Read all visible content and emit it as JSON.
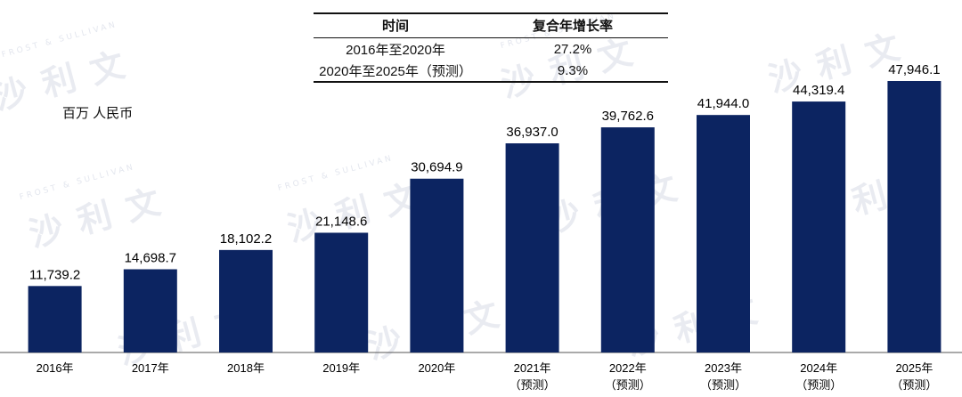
{
  "unit_label": "百万 人民币",
  "watermark": "沙利文",
  "watermark_small": "FROST & SULLIVAN",
  "cagr_table": {
    "headers": [
      "时间",
      "复合年增长率"
    ],
    "rows": [
      {
        "period": "2016年至2020年",
        "rate": "27.2%"
      },
      {
        "period": "2020年至2025年（预测）",
        "rate": "9.3%"
      }
    ]
  },
  "colors": {
    "bar": "#0c2461",
    "axis": "#555555"
  },
  "chart_data": {
    "type": "bar",
    "categories": [
      "2016年",
      "2017年",
      "2018年",
      "2019年",
      "2020年",
      "2021年",
      "2022年",
      "2023年",
      "2024年",
      "2025年"
    ],
    "sublabels": [
      "",
      "",
      "",
      "",
      "",
      "（预测）",
      "（预测）",
      "（预测）",
      "（预测）",
      "（预测）"
    ],
    "values": [
      11739.2,
      14698.7,
      18102.2,
      21148.6,
      30694.9,
      36937.0,
      39762.6,
      41944.0,
      44319.4,
      47946.1
    ],
    "value_labels": [
      "11,739.2",
      "14,698.7",
      "18,102.2",
      "21,148.6",
      "30,694.9",
      "36,937.0",
      "39,762.6",
      "41,944.0",
      "44,319.4",
      "47,946.1"
    ],
    "ylabel": "百万 人民币",
    "ylim": [
      0,
      47946.1
    ],
    "grid": false
  }
}
